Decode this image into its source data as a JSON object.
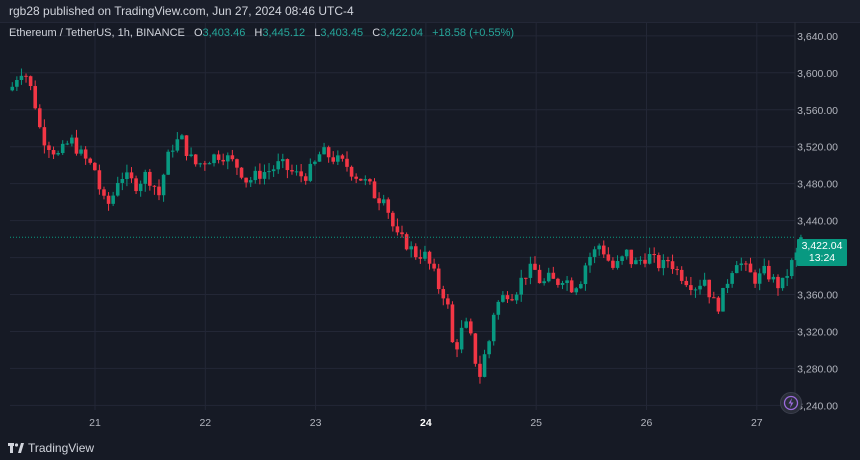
{
  "published_line": "rgb28 published on TradingView.com, Jun 27, 2024 08:46 UTC-4",
  "legend": {
    "symbol": "Ethereum / TetherUS, 1h, BINANCE",
    "open_label": "O",
    "open": "3,403.46",
    "high_label": "H",
    "high": "3,445.12",
    "low_label": "L",
    "low": "3,403.45",
    "close_label": "C",
    "close": "3,422.04",
    "change": "+18.58 (+0.55%)"
  },
  "last_price": {
    "value": "3,422.04",
    "countdown": "13:24"
  },
  "brand": "TradingView",
  "colors": {
    "up": "#089981",
    "down": "#f23645",
    "background": "#161a25",
    "grid": "#232736"
  },
  "icons": [
    "tradingview-logo-icon",
    "lightning-icon"
  ],
  "chart_data": {
    "type": "candlestick",
    "title": "Ethereum / TetherUS, 1h, BINANCE",
    "timeframe": "1h",
    "ylim": [
      3235,
      3655
    ],
    "yticks": [
      3240,
      3280,
      3320,
      3360,
      3400,
      3440,
      3480,
      3520,
      3560,
      3600,
      3640
    ],
    "ytick_labels": [
      "3,240.00",
      "3,280.00",
      "3,320.00",
      "3,360.00",
      "3,400.00",
      "3,440.00",
      "3,480.00",
      "3,520.00",
      "3,560.00",
      "3,600.00",
      "3,640.00"
    ],
    "xticks": [
      {
        "label": "21",
        "day": 21,
        "bold": false
      },
      {
        "label": "22",
        "day": 22,
        "bold": false
      },
      {
        "label": "23",
        "day": 23,
        "bold": false
      },
      {
        "label": "24",
        "day": 24,
        "bold": true
      },
      {
        "label": "25",
        "day": 25,
        "bold": false
      },
      {
        "label": "26",
        "day": 26,
        "bold": false
      },
      {
        "label": "27",
        "day": 27,
        "bold": false
      }
    ],
    "x_start_day": 20.25,
    "grid": true,
    "last_price_line": 3422.04,
    "close_path": [
      [
        20.25,
        3585
      ],
      [
        20.3,
        3598
      ],
      [
        20.35,
        3605
      ],
      [
        20.4,
        3590
      ],
      [
        20.45,
        3570
      ],
      [
        20.5,
        3540
      ],
      [
        20.55,
        3525
      ],
      [
        20.6,
        3520
      ],
      [
        20.66,
        3510
      ],
      [
        20.72,
        3518
      ],
      [
        20.78,
        3528
      ],
      [
        20.85,
        3515
      ],
      [
        20.92,
        3505
      ],
      [
        21.0,
        3495
      ],
      [
        21.05,
        3470
      ],
      [
        21.1,
        3455
      ],
      [
        21.15,
        3462
      ],
      [
        21.22,
        3490
      ],
      [
        21.3,
        3485
      ],
      [
        21.38,
        3478
      ],
      [
        21.45,
        3490
      ],
      [
        21.52,
        3482
      ],
      [
        21.58,
        3468
      ],
      [
        21.65,
        3505
      ],
      [
        21.7,
        3520
      ],
      [
        21.78,
        3530
      ],
      [
        21.85,
        3510
      ],
      [
        21.92,
        3500
      ],
      [
        22.0,
        3505
      ],
      [
        22.08,
        3510
      ],
      [
        22.15,
        3512
      ],
      [
        22.22,
        3506
      ],
      [
        22.3,
        3498
      ],
      [
        22.38,
        3482
      ],
      [
        22.45,
        3488
      ],
      [
        22.52,
        3492
      ],
      [
        22.6,
        3495
      ],
      [
        22.68,
        3502
      ],
      [
        22.75,
        3495
      ],
      [
        22.82,
        3490
      ],
      [
        22.9,
        3488
      ],
      [
        22.98,
        3498
      ],
      [
        23.05,
        3515
      ],
      [
        23.12,
        3510
      ],
      [
        23.2,
        3505
      ],
      [
        23.28,
        3500
      ],
      [
        23.35,
        3490
      ],
      [
        23.42,
        3485
      ],
      [
        23.5,
        3476
      ],
      [
        23.56,
        3462
      ],
      [
        23.62,
        3470
      ],
      [
        23.68,
        3440
      ],
      [
        23.74,
        3422
      ],
      [
        23.8,
        3418
      ],
      [
        23.86,
        3410
      ],
      [
        23.92,
        3402
      ],
      [
        23.98,
        3405
      ],
      [
        24.05,
        3388
      ],
      [
        24.1,
        3375
      ],
      [
        24.14,
        3358
      ],
      [
        24.18,
        3365
      ],
      [
        24.22,
        3325
      ],
      [
        24.26,
        3290
      ],
      [
        24.3,
        3318
      ],
      [
        24.34,
        3322
      ],
      [
        24.38,
        3328
      ],
      [
        24.42,
        3305
      ],
      [
        24.46,
        3282
      ],
      [
        24.5,
        3270
      ],
      [
        24.54,
        3300
      ],
      [
        24.58,
        3312
      ],
      [
        24.62,
        3345
      ],
      [
        24.68,
        3355
      ],
      [
        24.74,
        3362
      ],
      [
        24.8,
        3360
      ],
      [
        24.86,
        3375
      ],
      [
        24.92,
        3385
      ],
      [
        24.98,
        3388
      ],
      [
        25.05,
        3370
      ],
      [
        25.12,
        3378
      ],
      [
        25.18,
        3372
      ],
      [
        25.25,
        3380
      ],
      [
        25.32,
        3368
      ],
      [
        25.4,
        3375
      ],
      [
        25.46,
        3398
      ],
      [
        25.52,
        3405
      ],
      [
        25.58,
        3415
      ],
      [
        25.64,
        3400
      ],
      [
        25.7,
        3388
      ],
      [
        25.76,
        3395
      ],
      [
        25.82,
        3405
      ],
      [
        25.88,
        3392
      ],
      [
        25.95,
        3398
      ],
      [
        26.02,
        3402
      ],
      [
        26.08,
        3395
      ],
      [
        26.14,
        3390
      ],
      [
        26.2,
        3398
      ],
      [
        26.28,
        3385
      ],
      [
        26.34,
        3378
      ],
      [
        26.4,
        3372
      ],
      [
        26.46,
        3368
      ],
      [
        26.52,
        3380
      ],
      [
        26.58,
        3358
      ],
      [
        26.64,
        3345
      ],
      [
        26.7,
        3362
      ],
      [
        26.76,
        3385
      ],
      [
        26.82,
        3398
      ],
      [
        26.88,
        3390
      ],
      [
        26.94,
        3382
      ],
      [
        27.0,
        3375
      ],
      [
        27.06,
        3385
      ],
      [
        27.12,
        3380
      ],
      [
        27.18,
        3370
      ],
      [
        27.24,
        3372
      ],
      [
        27.3,
        3390
      ],
      [
        27.36,
        3403
      ],
      [
        27.4,
        3422
      ]
    ]
  }
}
